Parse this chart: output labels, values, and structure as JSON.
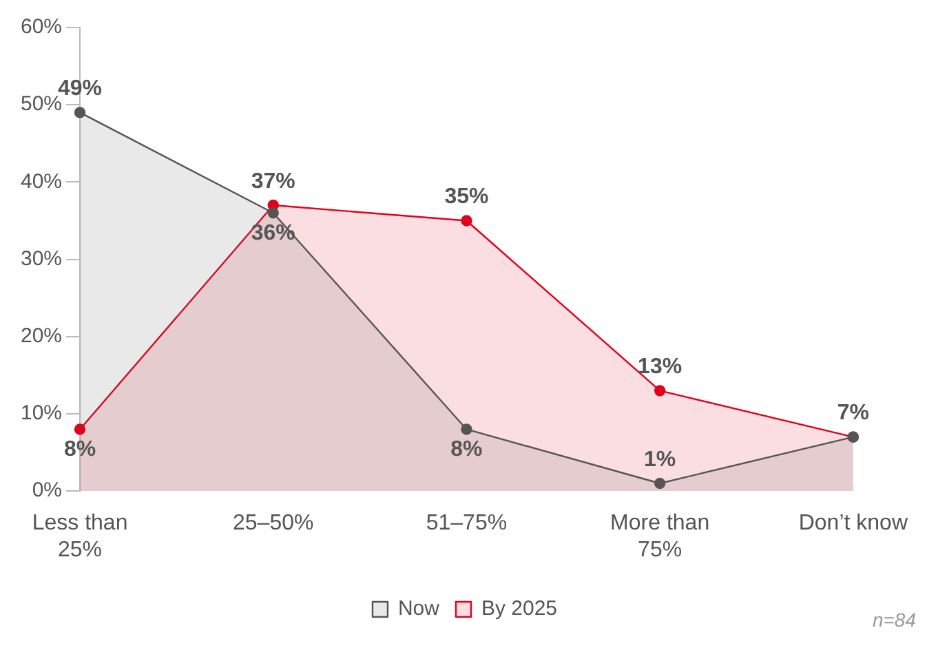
{
  "chart_data": {
    "type": "area",
    "categories": [
      "Less than 25%",
      "25–50%",
      "51–75%",
      "More than 75%",
      "Don’t know"
    ],
    "series": [
      {
        "name": "Now",
        "color": "#555555",
        "values": [
          49,
          36,
          8,
          1,
          7
        ],
        "value_labels": [
          "49%",
          "36%",
          "8%",
          "1%",
          null
        ]
      },
      {
        "name": "By 2025",
        "color": "#e3001b",
        "values": [
          8,
          37,
          35,
          13,
          7
        ],
        "value_labels": [
          "8%",
          "37%",
          "35%",
          "13%",
          "7%"
        ]
      }
    ],
    "ylim": [
      0,
      60
    ],
    "yticks": [
      {
        "value": 0,
        "label": "0%"
      },
      {
        "value": 10,
        "label": "10%"
      },
      {
        "value": 20,
        "label": "20%"
      },
      {
        "value": 30,
        "label": "30%"
      },
      {
        "value": 40,
        "label": "40%"
      },
      {
        "value": 50,
        "label": "50%"
      },
      {
        "value": 60,
        "label": "60%"
      }
    ],
    "grid": false,
    "legend": "bottom",
    "marker": "circle",
    "line_style": "solid",
    "annotations": [
      "n=84"
    ]
  }
}
